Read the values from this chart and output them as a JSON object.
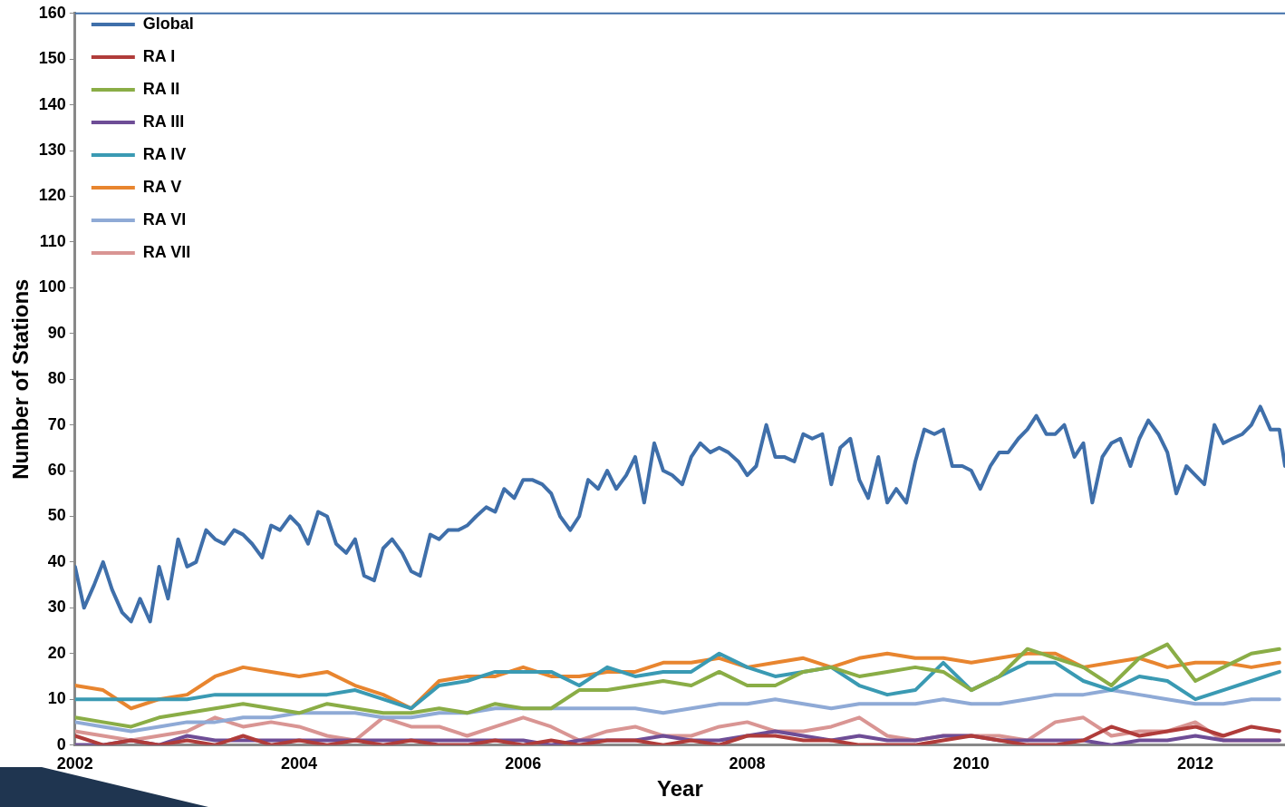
{
  "chart_data": {
    "type": "line",
    "xlabel": "Year",
    "ylabel": "Number of Stations",
    "x": [
      2002,
      2002.25,
      2002.5,
      2002.75,
      2003,
      2003.25,
      2003.5,
      2003.75,
      2004,
      2004.25,
      2004.5,
      2004.75,
      2005,
      2005.25,
      2005.5,
      2005.75,
      2006,
      2006.25,
      2006.5,
      2006.75,
      2007,
      2007.25,
      2007.5,
      2007.75,
      2008,
      2008.25,
      2008.5,
      2008.75,
      2009,
      2009.25,
      2009.5,
      2009.75,
      2010,
      2010.25,
      2010.5,
      2010.75,
      2011,
      2011.25,
      2011.5,
      2011.75,
      2012,
      2012.25,
      2012.5,
      2012.75
    ],
    "xlim": [
      2002,
      2012.8
    ],
    "xticks": [
      2002,
      2004,
      2006,
      2008,
      2010,
      2012
    ],
    "ylim": [
      0,
      160
    ],
    "yticks": [
      0,
      10,
      20,
      30,
      40,
      50,
      60,
      70,
      80,
      90,
      100,
      110,
      120,
      130,
      140,
      150,
      160
    ],
    "legend": "top left",
    "grid": false,
    "marker": "none",
    "line_style": "solid",
    "series": [
      {
        "name": "Global",
        "color": "#3f6faa",
        "x": [
          2002,
          2002.08,
          2002.17,
          2002.25,
          2002.33,
          2002.42,
          2002.5,
          2002.58,
          2002.67,
          2002.75,
          2002.83,
          2002.92,
          2003,
          2003.08,
          2003.17,
          2003.25,
          2003.33,
          2003.42,
          2003.5,
          2003.58,
          2003.67,
          2003.75,
          2003.83,
          2003.92,
          2004,
          2004.08,
          2004.17,
          2004.25,
          2004.33,
          2004.42,
          2004.5,
          2004.58,
          2004.67,
          2004.75,
          2004.83,
          2004.92,
          2005,
          2005.08,
          2005.17,
          2005.25,
          2005.33,
          2005.42,
          2005.5,
          2005.58,
          2005.67,
          2005.75,
          2005.83,
          2005.92,
          2006,
          2006.08,
          2006.17,
          2006.25,
          2006.33,
          2006.42,
          2006.5,
          2006.58,
          2006.67,
          2006.75,
          2006.83,
          2006.92,
          2007,
          2007.08,
          2007.17,
          2007.25,
          2007.33,
          2007.42,
          2007.5,
          2007.58,
          2007.67,
          2007.75,
          2007.83,
          2007.92,
          2008,
          2008.08,
          2008.17,
          2008.25,
          2008.33,
          2008.42,
          2008.5,
          2008.58,
          2008.67,
          2008.75,
          2008.83,
          2008.92,
          2009,
          2009.08,
          2009.17,
          2009.25,
          2009.33,
          2009.42,
          2009.5,
          2009.58,
          2009.67,
          2009.75,
          2009.83,
          2009.92,
          2010,
          2010.08,
          2010.17,
          2010.25,
          2010.33,
          2010.42,
          2010.5,
          2010.58,
          2010.67,
          2010.75,
          2010.83,
          2010.92,
          2011,
          2011.08,
          2011.17,
          2011.25,
          2011.33,
          2011.42,
          2011.5,
          2011.58,
          2011.67,
          2011.75,
          2011.83,
          2011.92,
          2012,
          2012.08,
          2012.17,
          2012.25,
          2012.33,
          2012.42,
          2012.5,
          2012.58,
          2012.67,
          2012.75,
          2012.8
        ],
        "values": [
          39,
          30,
          35,
          40,
          34,
          29,
          27,
          32,
          27,
          39,
          32,
          45,
          39,
          40,
          47,
          45,
          44,
          47,
          46,
          44,
          41,
          48,
          47,
          50,
          48,
          44,
          51,
          50,
          44,
          42,
          45,
          37,
          36,
          43,
          45,
          42,
          38,
          37,
          46,
          45,
          47,
          47,
          48,
          50,
          52,
          51,
          56,
          54,
          58,
          58,
          57,
          55,
          50,
          47,
          50,
          58,
          56,
          60,
          56,
          59,
          63,
          53,
          66,
          60,
          59,
          57,
          63,
          66,
          64,
          65,
          64,
          62,
          59,
          61,
          70,
          63,
          63,
          62,
          68,
          67,
          68,
          57,
          65,
          67,
          58,
          54,
          63,
          53,
          56,
          53,
          62,
          69,
          68,
          69,
          61,
          61,
          60,
          56,
          61,
          64,
          64,
          67,
          69,
          72,
          68,
          68,
          70,
          63,
          66,
          53,
          63,
          66,
          67,
          61,
          67,
          71,
          68,
          64,
          55,
          61,
          59,
          57,
          70,
          66,
          67,
          68,
          70,
          74,
          69,
          69,
          61
        ]
      },
      {
        "name": "RA I",
        "color": "#b03c3a",
        "values": [
          2,
          0,
          1,
          0,
          1,
          0,
          2,
          0,
          1,
          0,
          1,
          0,
          1,
          0,
          0,
          1,
          0,
          1,
          0,
          1,
          1,
          0,
          1,
          0,
          2,
          2,
          1,
          1,
          0,
          0,
          0,
          1,
          2,
          1,
          0,
          0,
          1,
          4,
          2,
          3,
          4,
          2,
          4,
          3
        ]
      },
      {
        "name": "RA II",
        "color": "#8aad46",
        "values": [
          6,
          5,
          4,
          6,
          7,
          8,
          9,
          8,
          7,
          9,
          8,
          7,
          7,
          8,
          7,
          9,
          8,
          8,
          12,
          12,
          13,
          14,
          13,
          16,
          13,
          13,
          16,
          17,
          15,
          16,
          17,
          16,
          12,
          15,
          21,
          19,
          17,
          13,
          19,
          22,
          14,
          17,
          20,
          21
        ]
      },
      {
        "name": "RA III",
        "color": "#6e4d96",
        "values": [
          0,
          0,
          1,
          0,
          2,
          1,
          1,
          1,
          1,
          1,
          1,
          1,
          1,
          1,
          1,
          1,
          1,
          0,
          1,
          1,
          1,
          2,
          1,
          1,
          2,
          3,
          2,
          1,
          2,
          1,
          1,
          2,
          2,
          1,
          1,
          1,
          1,
          0,
          1,
          1,
          2,
          1,
          1,
          1
        ]
      },
      {
        "name": "RA IV",
        "color": "#3a9ab3",
        "values": [
          10,
          10,
          10,
          10,
          10,
          11,
          11,
          11,
          11,
          11,
          12,
          10,
          8,
          13,
          14,
          16,
          16,
          16,
          13,
          17,
          15,
          16,
          16,
          20,
          17,
          15,
          16,
          17,
          13,
          11,
          12,
          18,
          12,
          15,
          18,
          18,
          14,
          12,
          15,
          14,
          10,
          12,
          14,
          16
        ]
      },
      {
        "name": "RA V",
        "color": "#e8852f",
        "values": [
          13,
          12,
          8,
          10,
          11,
          15,
          17,
          16,
          15,
          16,
          13,
          11,
          8,
          14,
          15,
          15,
          17,
          15,
          15,
          16,
          16,
          18,
          18,
          19,
          17,
          18,
          19,
          17,
          19,
          20,
          19,
          19,
          18,
          19,
          20,
          20,
          17,
          18,
          19,
          17,
          18,
          18,
          17,
          18
        ]
      },
      {
        "name": "RA VI",
        "color": "#8faad6",
        "values": [
          5,
          4,
          3,
          4,
          5,
          5,
          6,
          6,
          7,
          7,
          7,
          6,
          6,
          7,
          7,
          8,
          8,
          8,
          8,
          8,
          8,
          7,
          8,
          9,
          9,
          10,
          9,
          8,
          9,
          9,
          9,
          10,
          9,
          9,
          10,
          11,
          11,
          12,
          11,
          10,
          9,
          9,
          10,
          10
        ]
      },
      {
        "name": "RA VII",
        "color": "#d99593",
        "values": [
          3,
          2,
          1,
          2,
          3,
          6,
          4,
          5,
          4,
          2,
          1,
          6,
          4,
          4,
          2,
          4,
          6,
          4,
          1,
          3,
          4,
          2,
          2,
          4,
          5,
          3,
          3,
          4,
          6,
          2,
          1,
          2,
          2,
          2,
          1,
          5,
          6,
          2,
          3,
          3,
          5,
          1,
          1,
          1
        ]
      }
    ]
  }
}
